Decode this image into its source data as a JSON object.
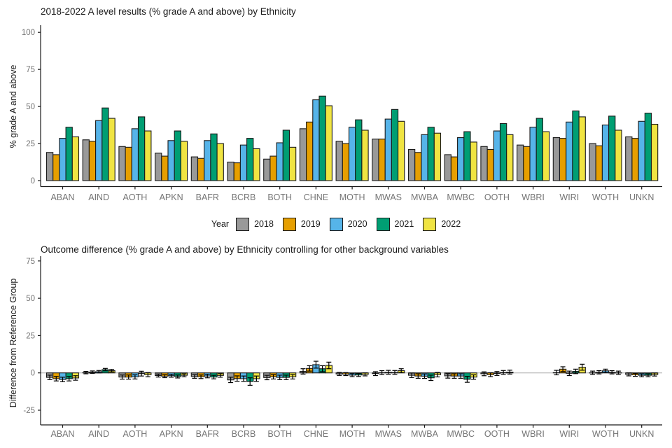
{
  "page": {
    "background": "#FFFFFF"
  },
  "legend": {
    "title": "Year",
    "entries": [
      "2018",
      "2019",
      "2020",
      "2021",
      "2022"
    ]
  },
  "palette": {
    "2018": "#999999",
    "2019": "#E69F00",
    "2020": "#56B4E9",
    "2021": "#009E73",
    "2022": "#F0E442",
    "bar_outline": "#1A1A1A",
    "axis_line": "#1A1A1A",
    "tick_label": "#757575",
    "axis_title": "#1A1A1A",
    "zero_line": "#ABABAB",
    "error_bar": "#000000"
  },
  "chart_data": [
    {
      "type": "bar",
      "title": "2018-2022 A level results (% grade A and above) by Ethnicity",
      "xlabel": "",
      "ylabel": "% grade A and above",
      "ylim": [
        0,
        100
      ],
      "yticks": [
        0,
        25,
        50,
        75,
        100
      ],
      "grid": false,
      "legend_position": "below-center",
      "categories": [
        "ABAN",
        "AIND",
        "AOTH",
        "APKN",
        "BAFR",
        "BCRB",
        "BOTH",
        "CHNE",
        "MOTH",
        "MWAS",
        "MWBA",
        "MWBC",
        "OOTH",
        "WBRI",
        "WIRI",
        "WOTH",
        "UNKN"
      ],
      "series": [
        {
          "name": "2018",
          "values": [
            19,
            27.5,
            23,
            18.5,
            16,
            12.5,
            14.5,
            35,
            26.5,
            28,
            21,
            17.5,
            23,
            24,
            29,
            25,
            29.5
          ]
        },
        {
          "name": "2019",
          "values": [
            17.5,
            26.5,
            22.5,
            16.5,
            15,
            12,
            16.5,
            39.5,
            25,
            28,
            19,
            16,
            21,
            23,
            28.5,
            23.5,
            28.5
          ]
        },
        {
          "name": "2020",
          "values": [
            28.5,
            40.5,
            35,
            27,
            27,
            24,
            25.5,
            54.5,
            36,
            41.5,
            31,
            29,
            33.5,
            36,
            39.5,
            37.5,
            40
          ]
        },
        {
          "name": "2021",
          "values": [
            36,
            49,
            43,
            33.5,
            31.5,
            28.5,
            34,
            57,
            41,
            48,
            36,
            33,
            38.5,
            42,
            47,
            43.5,
            45.5
          ]
        },
        {
          "name": "2022",
          "values": [
            29.5,
            42,
            33.5,
            26.5,
            25,
            21.5,
            22.5,
            50.5,
            34,
            40,
            32,
            26,
            31,
            33,
            43,
            34,
            38
          ]
        }
      ]
    },
    {
      "type": "bar",
      "title": "Outcome difference (% grade A and above) by Ethnicity controlling for other background variables",
      "xlabel": "",
      "ylabel": "Difference from Reference Group",
      "ylim": [
        -32,
        78
      ],
      "yticks": [
        -25,
        0,
        25,
        50,
        75
      ],
      "grid": false,
      "zero_line": true,
      "error_bars": true,
      "reference_group": "WBRI",
      "categories": [
        "ABAN",
        "AIND",
        "AOTH",
        "APKN",
        "BAFR",
        "BCRB",
        "BOTH",
        "CHNE",
        "MOTH",
        "MWAS",
        "MWBA",
        "MWBC",
        "OOTH",
        "WBRI",
        "WIRI",
        "WOTH",
        "UNKN"
      ],
      "series": [
        {
          "name": "2018",
          "values": [
            -3.0,
            0.2,
            -2.8,
            -1.8,
            -2.4,
            -4.7,
            -3.1,
            1.0,
            -0.7,
            -0.5,
            -1.6,
            -2.0,
            -0.6,
            null,
            0.2,
            0.1,
            -1.0
          ],
          "errors": [
            1.5,
            0.8,
            1.4,
            1.0,
            1.2,
            1.8,
            1.5,
            1.8,
            1.0,
            1.3,
            1.5,
            1.5,
            1.3,
            null,
            1.5,
            1.1,
            1.0
          ]
        },
        {
          "name": "2019",
          "values": [
            -3.9,
            0.5,
            -2.8,
            -2.2,
            -2.6,
            -3.8,
            -2.6,
            3.0,
            -0.8,
            0.2,
            -2.1,
            -2.1,
            -1.2,
            null,
            2.5,
            0.4,
            -1.3
          ],
          "errors": [
            1.5,
            0.8,
            1.4,
            1.0,
            1.2,
            1.8,
            1.5,
            1.8,
            1.0,
            1.3,
            1.5,
            1.5,
            1.3,
            null,
            1.6,
            1.1,
            1.0
          ]
        },
        {
          "name": "2020",
          "values": [
            -4.4,
            0.8,
            -2.7,
            -1.9,
            -2.1,
            -3.9,
            -3.0,
            5.5,
            -1.5,
            0.4,
            -2.2,
            -2.1,
            -0.4,
            null,
            -0.3,
            1.4,
            -1.6
          ],
          "errors": [
            1.5,
            0.8,
            1.4,
            1.0,
            1.2,
            1.8,
            1.5,
            2.3,
            1.0,
            1.3,
            1.5,
            1.5,
            1.3,
            null,
            1.5,
            1.1,
            1.0
          ]
        },
        {
          "name": "2021",
          "values": [
            -3.9,
            2.2,
            -0.5,
            -2.4,
            -2.8,
            -5.8,
            -3.0,
            2.8,
            -1.4,
            0.3,
            -3.3,
            -4.3,
            0.3,
            null,
            1.0,
            0.4,
            -1.6
          ],
          "errors": [
            1.5,
            0.8,
            1.6,
            1.0,
            1.2,
            2.5,
            1.5,
            2.0,
            1.0,
            1.3,
            1.8,
            2.0,
            1.3,
            null,
            1.5,
            1.1,
            1.0
          ]
        },
        {
          "name": "2022",
          "values": [
            -3.4,
            1.5,
            -1.2,
            -1.6,
            -1.7,
            -3.9,
            -2.6,
            5.0,
            -1.0,
            1.5,
            -1.2,
            -2.8,
            0.5,
            null,
            3.8,
            0.1,
            -1.1
          ],
          "errors": [
            1.5,
            0.8,
            1.4,
            1.0,
            1.2,
            1.8,
            1.5,
            2.2,
            1.0,
            1.3,
            1.5,
            1.5,
            1.3,
            null,
            2.0,
            1.1,
            1.0
          ]
        }
      ]
    }
  ]
}
